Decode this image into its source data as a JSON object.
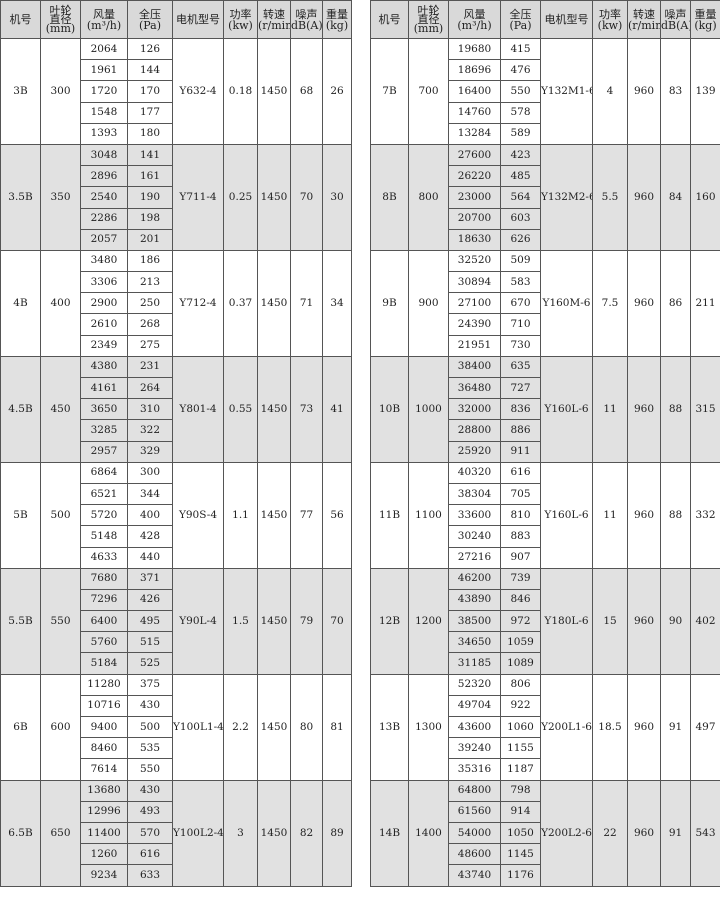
{
  "headers": [
    "机号",
    "叶轮\n直径\n(mm)",
    "风量\n(m³/h)",
    "全压\n(Pa)",
    "电机型号",
    "功率\n(kw)",
    "转速\n(r/min)",
    "噪声\ndB(A)",
    "重量\n(kg)"
  ],
  "left_table": [
    {
      "model": "3B",
      "diameter": "300",
      "flow": [
        "2064",
        "1961",
        "1720",
        "1548",
        "1393"
      ],
      "pressure": [
        "126",
        "144",
        "170",
        "177",
        "180"
      ],
      "motor": "Y632-4",
      "power": "0.18",
      "speed": "1450",
      "noise": "68",
      "weight": "26"
    },
    {
      "model": "3.5B",
      "diameter": "350",
      "flow": [
        "3048",
        "2896",
        "2540",
        "2286",
        "2057"
      ],
      "pressure": [
        "141",
        "161",
        "190",
        "198",
        "201"
      ],
      "motor": "Y711-4",
      "power": "0.25",
      "speed": "1450",
      "noise": "70",
      "weight": "30"
    },
    {
      "model": "4B",
      "diameter": "400",
      "flow": [
        "3480",
        "3306",
        "2900",
        "2610",
        "2349"
      ],
      "pressure": [
        "186",
        "213",
        "250",
        "268",
        "275"
      ],
      "motor": "Y712-4",
      "power": "0.37",
      "speed": "1450",
      "noise": "71",
      "weight": "34"
    },
    {
      "model": "4.5B",
      "diameter": "450",
      "flow": [
        "4380",
        "4161",
        "3650",
        "3285",
        "2957"
      ],
      "pressure": [
        "231",
        "264",
        "310",
        "322",
        "329"
      ],
      "motor": "Y801-4",
      "power": "0.55",
      "speed": "1450",
      "noise": "73",
      "weight": "41"
    },
    {
      "model": "5B",
      "diameter": "500",
      "flow": [
        "6864",
        "6521",
        "5720",
        "5148",
        "4633"
      ],
      "pressure": [
        "300",
        "344",
        "400",
        "428",
        "440"
      ],
      "motor": "Y90S-4",
      "power": "1.1",
      "speed": "1450",
      "noise": "77",
      "weight": "56"
    },
    {
      "model": "5.5B",
      "diameter": "550",
      "flow": [
        "7680",
        "7296",
        "6400",
        "5760",
        "5184"
      ],
      "pressure": [
        "371",
        "426",
        "495",
        "515",
        "525"
      ],
      "motor": "Y90L-4",
      "power": "1.5",
      "speed": "1450",
      "noise": "79",
      "weight": "70"
    },
    {
      "model": "6B",
      "diameter": "600",
      "flow": [
        "11280",
        "10716",
        "9400",
        "8460",
        "7614"
      ],
      "pressure": [
        "375",
        "430",
        "500",
        "535",
        "550"
      ],
      "motor": "Y100L1-4",
      "power": "2.2",
      "speed": "1450",
      "noise": "80",
      "weight": "81"
    },
    {
      "model": "6.5B",
      "diameter": "650",
      "flow": [
        "13680",
        "12996",
        "11400",
        "1260",
        "9234"
      ],
      "pressure": [
        "430",
        "493",
        "570",
        "616",
        "633"
      ],
      "motor": "Y100L2-4",
      "power": "3",
      "speed": "1450",
      "noise": "82",
      "weight": "89"
    }
  ],
  "right_table": [
    {
      "model": "7B",
      "diameter": "700",
      "flow": [
        "19680",
        "18696",
        "16400",
        "14760",
        "13284"
      ],
      "pressure": [
        "415",
        "476",
        "550",
        "578",
        "589"
      ],
      "motor": "Y132M1-6",
      "power": "4",
      "speed": "960",
      "noise": "83",
      "weight": "139"
    },
    {
      "model": "8B",
      "diameter": "800",
      "flow": [
        "27600",
        "26220",
        "23000",
        "20700",
        "18630"
      ],
      "pressure": [
        "423",
        "485",
        "564",
        "603",
        "626"
      ],
      "motor": "Y132M2-6",
      "power": "5.5",
      "speed": "960",
      "noise": "84",
      "weight": "160"
    },
    {
      "model": "9B",
      "diameter": "900",
      "flow": [
        "32520",
        "30894",
        "27100",
        "24390",
        "21951"
      ],
      "pressure": [
        "509",
        "583",
        "670",
        "710",
        "730"
      ],
      "motor": "Y160M-6",
      "power": "7.5",
      "speed": "960",
      "noise": "86",
      "weight": "211"
    },
    {
      "model": "10B",
      "diameter": "1000",
      "flow": [
        "38400",
        "36480",
        "32000",
        "28800",
        "25920"
      ],
      "pressure": [
        "635",
        "727",
        "836",
        "886",
        "911"
      ],
      "motor": "Y160L-6",
      "power": "11",
      "speed": "960",
      "noise": "88",
      "weight": "315"
    },
    {
      "model": "11B",
      "diameter": "1100",
      "flow": [
        "40320",
        "38304",
        "33600",
        "30240",
        "27216"
      ],
      "pressure": [
        "616",
        "705",
        "810",
        "883",
        "907"
      ],
      "motor": "Y160L-6",
      "power": "11",
      "speed": "960",
      "noise": "88",
      "weight": "332"
    },
    {
      "model": "12B",
      "diameter": "1200",
      "flow": [
        "46200",
        "43890",
        "38500",
        "34650",
        "31185"
      ],
      "pressure": [
        "739",
        "846",
        "972",
        "1059",
        "1089"
      ],
      "motor": "Y180L-6",
      "power": "15",
      "speed": "960",
      "noise": "90",
      "weight": "402"
    },
    {
      "model": "13B",
      "diameter": "1300",
      "flow": [
        "52320",
        "49704",
        "43600",
        "39240",
        "35316"
      ],
      "pressure": [
        "806",
        "922",
        "1060",
        "1155",
        "1187"
      ],
      "motor": "Y200L1-6",
      "power": "18.5",
      "speed": "960",
      "noise": "91",
      "weight": "497"
    },
    {
      "model": "14B",
      "diameter": "1400",
      "flow": [
        "64800",
        "61560",
        "54000",
        "48600",
        "43740"
      ],
      "pressure": [
        "798",
        "914",
        "1050",
        "1145",
        "1176"
      ],
      "motor": "Y200L2-6",
      "power": "22",
      "speed": "960",
      "noise": "91",
      "weight": "543"
    }
  ]
}
